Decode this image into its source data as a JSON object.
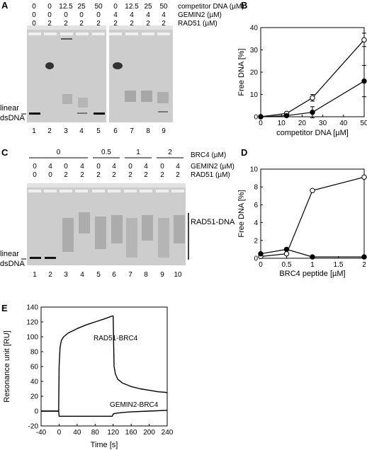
{
  "panels": {
    "A": {
      "letter": "A",
      "header_rows": [
        {
          "label": "competitor DNA (µM)",
          "values": [
            "0",
            "0",
            "12.5",
            "25",
            "50",
            "0",
            "12.5",
            "25",
            "50"
          ]
        },
        {
          "label": "GEMIN2 (µM)",
          "values": [
            "0",
            "0",
            "0",
            "0",
            "0",
            "4",
            "4",
            "4",
            "4"
          ]
        },
        {
          "label": "RAD51 (µM)",
          "values": [
            "0",
            "2",
            "2",
            "2",
            "2",
            "2",
            "2",
            "2",
            "2"
          ]
        }
      ],
      "lanes": [
        "1",
        "2",
        "3",
        "4",
        "5",
        "6",
        "7",
        "8",
        "9"
      ],
      "side_label_1": "linear",
      "side_label_2": "dsDNA"
    },
    "B": {
      "letter": "B",
      "ylabel": "Free DNA [%]",
      "xlabel": "competitor DNA [µM]",
      "xticks": [
        "0",
        "10",
        "20",
        "30",
        "40",
        "50"
      ],
      "yticks": [
        "0",
        "10",
        "20",
        "30",
        "40"
      ]
    },
    "C": {
      "letter": "C",
      "brc4_label": "BRC4 (µM)",
      "brc4_groups": [
        "0",
        "0.5",
        "1",
        "2"
      ],
      "header_rows": [
        {
          "label": "GEMIN2 (µM)",
          "values": [
            "0",
            "4",
            "0",
            "4",
            "0",
            "4",
            "0",
            "4",
            "0",
            "4"
          ]
        },
        {
          "label": "RAD51 (µM)",
          "values": [
            "0",
            "0",
            "2",
            "2",
            "2",
            "2",
            "2",
            "2",
            "2",
            "2"
          ]
        }
      ],
      "lanes": [
        "1",
        "2",
        "3",
        "4",
        "5",
        "6",
        "7",
        "8",
        "9",
        "10"
      ],
      "side_label_1": "linear",
      "side_label_2": "dsDNA",
      "complex_label": "RAD51-DNA"
    },
    "D": {
      "letter": "D",
      "ylabel": "Free DNA [%]",
      "xlabel": "BRC4 peptide [µM]",
      "xticks": [
        "0",
        "0.5",
        "1",
        "1.5",
        "2"
      ],
      "yticks": [
        "0",
        "2",
        "4",
        "6",
        "8",
        "10"
      ]
    },
    "E": {
      "letter": "E",
      "ylabel": "Resonance unit [RU]",
      "xlabel": "Time [s]",
      "xticks": [
        "-40",
        "0",
        "40",
        "80",
        "120",
        "160",
        "200",
        "240"
      ],
      "yticks": [
        "-20",
        "0",
        "20",
        "40",
        "60",
        "80",
        "100",
        "120",
        "140"
      ],
      "trace1_label": "RAD51-BRC4",
      "trace2_label": "GEMIN2-BRC4"
    }
  },
  "chart_data": [
    {
      "panel": "B",
      "type": "line",
      "xlabel": "competitor DNA [µM]",
      "ylabel": "Free DNA [%]",
      "xlim": [
        0,
        50
      ],
      "ylim": [
        0,
        40
      ],
      "grid": false,
      "series": [
        {
          "marker": "open",
          "x": [
            0,
            12.5,
            25,
            50
          ],
          "y": [
            0,
            1.5,
            8.5,
            34.5
          ],
          "err": [
            0,
            0.5,
            1.5,
            3
          ]
        },
        {
          "marker": "filled",
          "x": [
            0,
            12.5,
            25,
            50
          ],
          "y": [
            0,
            0.5,
            2,
            16
          ],
          "err": [
            0,
            0.3,
            2.5,
            7
          ]
        }
      ]
    },
    {
      "panel": "D",
      "type": "line",
      "xlabel": "BRC4 peptide [µM]",
      "ylabel": "Free DNA [%]",
      "xlim": [
        0,
        2
      ],
      "ylim": [
        0,
        10
      ],
      "grid": false,
      "series": [
        {
          "marker": "open",
          "x": [
            0,
            0.5,
            1,
            2
          ],
          "y": [
            0.2,
            0.5,
            7.6,
            9.1
          ]
        },
        {
          "marker": "filled",
          "x": [
            0,
            0.5,
            1,
            2
          ],
          "y": [
            0.5,
            1.0,
            0.15,
            0.15
          ]
        }
      ]
    },
    {
      "panel": "E",
      "type": "line",
      "xlabel": "Time [s]",
      "ylabel": "Resonance unit [RU]",
      "xlim": [
        -40,
        240
      ],
      "ylim": [
        -20,
        140
      ],
      "grid": false,
      "series": [
        {
          "name": "RAD51-BRC4",
          "x": [
            -40,
            -1,
            0,
            2,
            5,
            10,
            20,
            40,
            60,
            80,
            100,
            118,
            120,
            122,
            125,
            130,
            140,
            160,
            180,
            200,
            220,
            240
          ],
          "y": [
            0,
            0,
            60,
            85,
            95,
            100,
            105,
            111,
            116,
            120,
            124,
            128,
            128,
            60,
            50,
            43,
            38,
            33,
            30,
            28,
            26,
            25
          ]
        },
        {
          "name": "GEMIN2-BRC4",
          "x": [
            -40,
            -1,
            0,
            3,
            20,
            60,
            100,
            118,
            120,
            125,
            140,
            160,
            200,
            240
          ],
          "y": [
            0,
            0,
            -7,
            -7,
            -7,
            -7,
            -7,
            -7,
            -4,
            -3,
            -2,
            -1,
            0,
            1
          ]
        }
      ]
    }
  ]
}
